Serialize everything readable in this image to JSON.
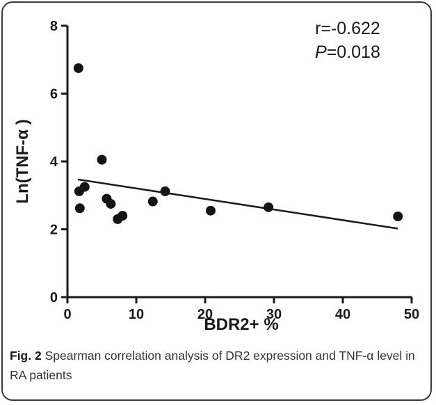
{
  "figure": {
    "label": "Fig. 2",
    "caption": "Spearman correlation analysis of DR2 expression and TNF-α level in RA patients"
  },
  "annotation": {
    "r_text": "r=-0.622",
    "p_symbol": "P",
    "p_value": "=0.018"
  },
  "chart_data": {
    "type": "scatter",
    "xlabel": "BDR2+ %",
    "ylabel": "Ln(TNF-α )",
    "xlim": [
      0,
      50
    ],
    "ylim": [
      0,
      8
    ],
    "xticks": [
      0,
      10,
      20,
      30,
      40,
      50
    ],
    "yticks": [
      0,
      2,
      4,
      6,
      8
    ],
    "grid": false,
    "points": [
      {
        "x": 1.6,
        "y": 6.75
      },
      {
        "x": 1.7,
        "y": 3.12
      },
      {
        "x": 1.8,
        "y": 2.62
      },
      {
        "x": 2.5,
        "y": 3.25
      },
      {
        "x": 5.0,
        "y": 4.05
      },
      {
        "x": 5.7,
        "y": 2.9
      },
      {
        "x": 6.3,
        "y": 2.75
      },
      {
        "x": 7.3,
        "y": 2.3
      },
      {
        "x": 8.0,
        "y": 2.4
      },
      {
        "x": 12.4,
        "y": 2.82
      },
      {
        "x": 14.2,
        "y": 3.12
      },
      {
        "x": 20.8,
        "y": 2.55
      },
      {
        "x": 29.2,
        "y": 2.65
      },
      {
        "x": 48.0,
        "y": 2.38
      }
    ],
    "fit_line": {
      "x": [
        1.5,
        48.0
      ],
      "y": [
        3.47,
        2.02
      ]
    }
  }
}
